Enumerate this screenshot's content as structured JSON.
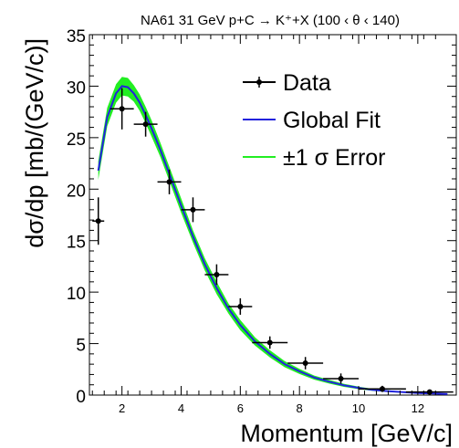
{
  "chart_data": {
    "type": "scatter",
    "title": "NA61 31 GeV p+C → K⁺+X (100 ‹ θ ‹ 140)",
    "xlabel": "Momentum [GeV/c]",
    "ylabel": "dσ/dp [mb/(GeV/c)]",
    "xlim": [
      0.9,
      13.3
    ],
    "ylim": [
      0,
      35
    ],
    "xticks": [
      2,
      4,
      6,
      8,
      10,
      12
    ],
    "yticks": [
      0,
      5,
      10,
      15,
      20,
      25,
      30,
      35
    ],
    "legend_position": "top-right",
    "series": [
      {
        "name": "Data",
        "color": "#000000",
        "points": [
          {
            "x": 1.2,
            "y": 16.9,
            "xerr": 0.2,
            "yerr": 2.3
          },
          {
            "x": 2.0,
            "y": 27.8,
            "xerr": 0.4,
            "yerr": 2.0
          },
          {
            "x": 2.8,
            "y": 26.3,
            "xerr": 0.4,
            "yerr": 1.2
          },
          {
            "x": 3.6,
            "y": 20.7,
            "xerr": 0.4,
            "yerr": 1.2
          },
          {
            "x": 4.4,
            "y": 18.0,
            "xerr": 0.4,
            "yerr": 1.2
          },
          {
            "x": 5.2,
            "y": 11.7,
            "xerr": 0.4,
            "yerr": 1.0
          },
          {
            "x": 6.0,
            "y": 8.6,
            "xerr": 0.4,
            "yerr": 0.8
          },
          {
            "x": 7.0,
            "y": 5.1,
            "xerr": 0.6,
            "yerr": 0.6
          },
          {
            "x": 8.2,
            "y": 3.1,
            "xerr": 0.6,
            "yerr": 0.6
          },
          {
            "x": 9.4,
            "y": 1.6,
            "xerr": 0.6,
            "yerr": 0.5
          },
          {
            "x": 10.8,
            "y": 0.6,
            "xerr": 0.8,
            "yerr": 0.3
          },
          {
            "x": 12.4,
            "y": 0.3,
            "xerr": 0.8,
            "yerr": 0.2
          }
        ]
      },
      {
        "name": "Global Fit",
        "color": "#2222dd",
        "x": [
          1.2,
          1.5,
          1.8,
          2.0,
          2.2,
          2.4,
          2.6,
          2.8,
          3.0,
          3.3,
          3.6,
          4.0,
          4.4,
          4.8,
          5.2,
          5.6,
          6.0,
          6.5,
          7.0,
          7.5,
          8.0,
          8.5,
          9.0,
          9.5,
          10.0,
          10.5,
          11.0,
          11.5,
          12.0,
          12.5,
          13.0
        ],
        "y": [
          21.8,
          27.0,
          29.3,
          30.0,
          29.9,
          29.3,
          28.4,
          27.2,
          25.9,
          23.8,
          21.5,
          18.4,
          15.4,
          12.7,
          10.4,
          8.4,
          6.8,
          5.2,
          4.0,
          3.0,
          2.3,
          1.7,
          1.3,
          0.95,
          0.7,
          0.5,
          0.38,
          0.28,
          0.2,
          0.15,
          0.1
        ]
      },
      {
        "name": "±1 σ Error",
        "color": "#22ee22",
        "band_halfwidth": [
          0.9,
          0.9,
          0.9,
          0.9,
          0.9,
          0.8,
          0.8,
          0.8,
          0.8,
          0.7,
          0.7,
          0.7,
          0.6,
          0.6,
          0.6,
          0.5,
          0.5,
          0.4,
          0.35,
          0.3,
          0.25,
          0.2,
          0.18,
          0.15,
          0.12,
          0.1,
          0.08,
          0.06,
          0.05,
          0.04,
          0.03
        ]
      }
    ]
  }
}
